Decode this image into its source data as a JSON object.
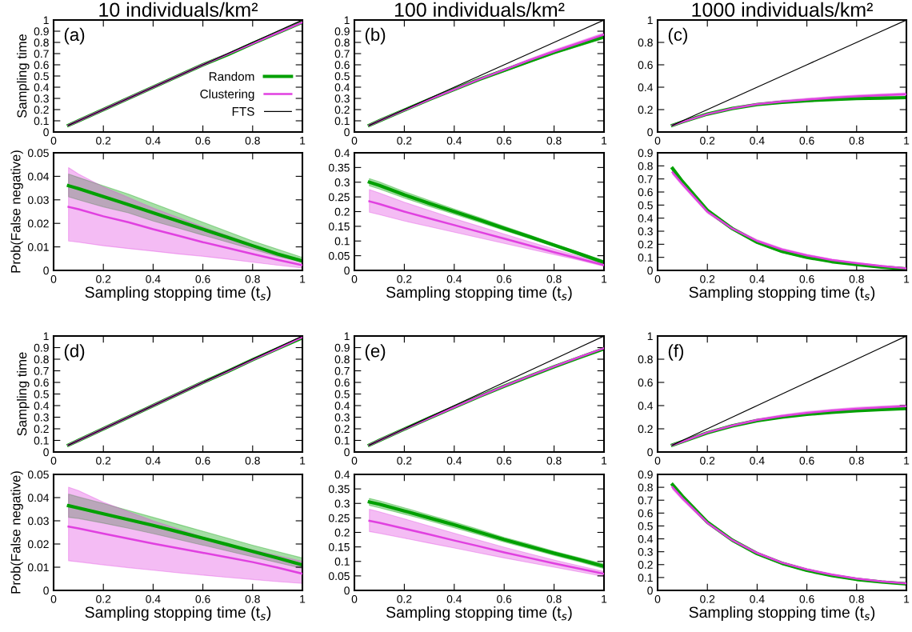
{
  "chart_data": [
    {
      "type": "line",
      "title": "10 individuals/km²",
      "ylabel": "Sampling time",
      "annotations": [
        "(a)"
      ],
      "legend": "center right",
      "x": [
        0.06,
        0.1,
        0.2,
        0.3,
        0.4,
        0.5,
        0.6,
        0.7,
        0.8,
        0.9,
        1.0
      ],
      "xlim": [
        0,
        1
      ],
      "xticks": [
        0,
        0.2,
        0.4,
        0.6,
        0.8,
        1
      ],
      "ylim": [
        0,
        1
      ],
      "yticks": [
        0,
        0.1,
        0.2,
        0.3,
        0.4,
        0.5,
        0.6,
        0.7,
        0.8,
        0.9,
        1
      ],
      "series": [
        {
          "name": "Random",
          "color": "#00a000",
          "values": [
            0.06,
            0.1,
            0.2,
            0.3,
            0.4,
            0.5,
            0.6,
            0.69,
            0.79,
            0.885,
            0.98
          ]
        },
        {
          "name": "Clustering",
          "color": "#e040e0",
          "values": [
            0.06,
            0.1,
            0.2,
            0.3,
            0.4,
            0.5,
            0.6,
            0.695,
            0.79,
            0.885,
            0.98
          ]
        },
        {
          "name": "FTS",
          "color": "#000000",
          "values": [
            0.06,
            0.1,
            0.2,
            0.3,
            0.4,
            0.5,
            0.6,
            0.7,
            0.8,
            0.9,
            1.0
          ]
        }
      ]
    },
    {
      "type": "line",
      "title": "100 individuals/km²",
      "annotations": [
        "(b)"
      ],
      "x": [
        0.06,
        0.1,
        0.2,
        0.3,
        0.4,
        0.5,
        0.6,
        0.7,
        0.8,
        0.9,
        1.0
      ],
      "xlim": [
        0,
        1
      ],
      "xticks": [
        0,
        0.2,
        0.4,
        0.6,
        0.8,
        1
      ],
      "ylim": [
        0,
        1
      ],
      "yticks": [
        0,
        0.1,
        0.2,
        0.3,
        0.4,
        0.5,
        0.6,
        0.7,
        0.8,
        0.9,
        1
      ],
      "series": [
        {
          "color": "#00a000",
          "values": [
            0.06,
            0.1,
            0.195,
            0.29,
            0.38,
            0.47,
            0.55,
            0.63,
            0.71,
            0.78,
            0.85
          ],
          "lower": [
            0.06,
            0.098,
            0.192,
            0.285,
            0.374,
            0.462,
            0.54,
            0.619,
            0.697,
            0.766,
            0.835
          ],
          "upper": [
            0.06,
            0.102,
            0.198,
            0.295,
            0.386,
            0.478,
            0.56,
            0.641,
            0.723,
            0.794,
            0.865
          ]
        },
        {
          "color": "#e040e0",
          "values": [
            0.06,
            0.1,
            0.195,
            0.29,
            0.38,
            0.47,
            0.555,
            0.64,
            0.72,
            0.795,
            0.87
          ],
          "lower": [
            0.06,
            0.098,
            0.192,
            0.285,
            0.374,
            0.462,
            0.545,
            0.629,
            0.707,
            0.781,
            0.855
          ],
          "upper": [
            0.06,
            0.102,
            0.198,
            0.295,
            0.386,
            0.478,
            0.565,
            0.651,
            0.733,
            0.809,
            0.885
          ]
        },
        {
          "color": "#000000",
          "values": [
            0.06,
            0.1,
            0.2,
            0.3,
            0.4,
            0.5,
            0.6,
            0.7,
            0.8,
            0.9,
            1.0
          ]
        }
      ]
    },
    {
      "type": "line",
      "title": "1000 individuals/km²",
      "annotations": [
        "(c)"
      ],
      "x": [
        0.06,
        0.1,
        0.2,
        0.3,
        0.4,
        0.5,
        0.6,
        0.7,
        0.8,
        0.9,
        1.0
      ],
      "xlim": [
        0,
        1
      ],
      "xticks": [
        0,
        0.2,
        0.4,
        0.6,
        0.8,
        1
      ],
      "ylim": [
        0,
        1
      ],
      "yticks": [
        0,
        0.2,
        0.4,
        0.6,
        0.8,
        1
      ],
      "series": [
        {
          "color": "#00a000",
          "values": [
            0.06,
            0.09,
            0.16,
            0.21,
            0.245,
            0.265,
            0.28,
            0.29,
            0.298,
            0.303,
            0.307
          ]
        },
        {
          "color": "#e040e0",
          "values": [
            0.06,
            0.09,
            0.16,
            0.21,
            0.248,
            0.272,
            0.29,
            0.305,
            0.318,
            0.328,
            0.338
          ],
          "lower": [
            0.06,
            0.087,
            0.154,
            0.202,
            0.238,
            0.261,
            0.278,
            0.293,
            0.306,
            0.316,
            0.326
          ],
          "upper": [
            0.06,
            0.093,
            0.166,
            0.218,
            0.258,
            0.283,
            0.302,
            0.317,
            0.33,
            0.34,
            0.35
          ]
        },
        {
          "color": "#000000",
          "values": [
            0.06,
            0.1,
            0.2,
            0.3,
            0.4,
            0.5,
            0.6,
            0.7,
            0.8,
            0.9,
            1.0
          ]
        }
      ]
    },
    {
      "type": "line",
      "xlabel": "Sampling stopping time (t$_{s}$)",
      "ylabel": "Prob(False negative)",
      "x": [
        0.06,
        0.1,
        0.2,
        0.3,
        0.4,
        0.5,
        0.6,
        0.7,
        0.8,
        0.9,
        1.0
      ],
      "xlim": [
        0,
        1
      ],
      "xticks": [
        0,
        0.2,
        0.4,
        0.6,
        0.8,
        1
      ],
      "ylim": [
        0,
        0.05
      ],
      "yticks": [
        0,
        0.01,
        0.02,
        0.03,
        0.04,
        0.05
      ],
      "series": [
        {
          "color": "#00a000",
          "values": [
            0.036,
            0.0348,
            0.0314,
            0.028,
            0.0245,
            0.021,
            0.0175,
            0.014,
            0.0105,
            0.007,
            0.004
          ],
          "lower": [
            0.0313,
            0.03,
            0.027,
            0.0245,
            0.021,
            0.018,
            0.015,
            0.012,
            0.009,
            0.006,
            0.0035
          ],
          "upper": [
            0.041,
            0.0395,
            0.036,
            0.0325,
            0.0285,
            0.0245,
            0.0205,
            0.0165,
            0.0125,
            0.009,
            0.0055
          ]
        },
        {
          "color": "#e040e0",
          "values": [
            0.027,
            0.026,
            0.023,
            0.0205,
            0.0175,
            0.0148,
            0.012,
            0.0095,
            0.007,
            0.0045,
            0.0022
          ],
          "lower": [
            0.0125,
            0.012,
            0.0105,
            0.0093,
            0.0082,
            0.007,
            0.006,
            0.0048,
            0.0035,
            0.0022,
            0.001
          ],
          "upper": [
            0.0437,
            0.041,
            0.0355,
            0.031,
            0.0265,
            0.0225,
            0.0185,
            0.0148,
            0.011,
            0.0068,
            0.0035
          ]
        }
      ]
    },
    {
      "type": "line",
      "xlabel": "Sampling stopping time (t$_{s}$)",
      "x": [
        0.06,
        0.1,
        0.2,
        0.3,
        0.4,
        0.5,
        0.6,
        0.7,
        0.8,
        0.9,
        1.0
      ],
      "xlim": [
        0,
        1
      ],
      "xticks": [
        0,
        0.2,
        0.4,
        0.6,
        0.8,
        1
      ],
      "ylim": [
        0,
        0.4
      ],
      "yticks": [
        0,
        0.05,
        0.1,
        0.15,
        0.2,
        0.25,
        0.3,
        0.35,
        0.4
      ],
      "series": [
        {
          "color": "#00a000",
          "values": [
            0.3,
            0.289,
            0.257,
            0.228,
            0.2,
            0.172,
            0.143,
            0.115,
            0.086,
            0.057,
            0.027
          ],
          "lower": [
            0.288,
            0.277,
            0.246,
            0.218,
            0.191,
            0.164,
            0.136,
            0.109,
            0.081,
            0.052,
            0.021
          ],
          "upper": [
            0.312,
            0.301,
            0.268,
            0.238,
            0.209,
            0.18,
            0.15,
            0.121,
            0.091,
            0.062,
            0.033
          ]
        },
        {
          "color": "#e040e0",
          "values": [
            0.235,
            0.226,
            0.2,
            0.177,
            0.154,
            0.131,
            0.108,
            0.085,
            0.062,
            0.04,
            0.018
          ],
          "lower": [
            0.198,
            0.19,
            0.168,
            0.149,
            0.13,
            0.111,
            0.092,
            0.073,
            0.054,
            0.035,
            0.014
          ],
          "upper": [
            0.275,
            0.263,
            0.232,
            0.204,
            0.176,
            0.15,
            0.124,
            0.098,
            0.073,
            0.048,
            0.024
          ]
        }
      ]
    },
    {
      "type": "line",
      "xlabel": "Sampling stopping time (t$_{s}$)",
      "x": [
        0.06,
        0.1,
        0.2,
        0.3,
        0.4,
        0.5,
        0.6,
        0.7,
        0.8,
        0.9,
        1.0
      ],
      "xlim": [
        0,
        1
      ],
      "xticks": [
        0,
        0.2,
        0.4,
        0.6,
        0.8,
        1
      ],
      "ylim": [
        0,
        0.9
      ],
      "yticks": [
        0,
        0.1,
        0.2,
        0.3,
        0.4,
        0.5,
        0.6,
        0.7,
        0.8,
        0.9
      ],
      "series": [
        {
          "color": "#00a000",
          "values": [
            0.78,
            0.68,
            0.46,
            0.32,
            0.215,
            0.145,
            0.1,
            0.067,
            0.045,
            0.025,
            0.012
          ],
          "lower": [
            0.765,
            0.666,
            0.448,
            0.31,
            0.206,
            0.137,
            0.093,
            0.061,
            0.04,
            0.021,
            0.009
          ],
          "upper": [
            0.795,
            0.694,
            0.472,
            0.33,
            0.224,
            0.153,
            0.107,
            0.073,
            0.05,
            0.029,
            0.015
          ]
        },
        {
          "color": "#e040e0",
          "values": [
            0.75,
            0.66,
            0.45,
            0.32,
            0.225,
            0.16,
            0.115,
            0.08,
            0.055,
            0.033,
            0.015
          ],
          "lower": [
            0.735,
            0.646,
            0.438,
            0.31,
            0.215,
            0.151,
            0.107,
            0.073,
            0.049,
            0.028,
            0.011
          ],
          "upper": [
            0.765,
            0.674,
            0.462,
            0.33,
            0.235,
            0.169,
            0.123,
            0.087,
            0.061,
            0.038,
            0.019
          ]
        }
      ]
    },
    {
      "type": "line",
      "ylabel": "Sampling time",
      "annotations": [
        "(d)"
      ],
      "x": [
        0.06,
        0.1,
        0.2,
        0.3,
        0.4,
        0.5,
        0.6,
        0.7,
        0.8,
        0.9,
        1.0
      ],
      "xlim": [
        0,
        1
      ],
      "xticks": [
        0,
        0.2,
        0.4,
        0.6,
        0.8,
        1
      ],
      "ylim": [
        0,
        1
      ],
      "yticks": [
        0,
        0.1,
        0.2,
        0.3,
        0.4,
        0.5,
        0.6,
        0.7,
        0.8,
        0.9,
        1
      ],
      "series": [
        {
          "color": "#00a000",
          "values": [
            0.06,
            0.1,
            0.2,
            0.3,
            0.4,
            0.5,
            0.6,
            0.695,
            0.795,
            0.89,
            0.985
          ]
        },
        {
          "color": "#e040e0",
          "values": [
            0.06,
            0.1,
            0.2,
            0.3,
            0.4,
            0.5,
            0.6,
            0.695,
            0.795,
            0.89,
            0.99
          ]
        },
        {
          "color": "#000000",
          "values": [
            0.06,
            0.1,
            0.2,
            0.3,
            0.4,
            0.5,
            0.6,
            0.7,
            0.8,
            0.9,
            1.0
          ]
        }
      ]
    },
    {
      "type": "line",
      "annotations": [
        "(e)"
      ],
      "x": [
        0.06,
        0.1,
        0.2,
        0.3,
        0.4,
        0.5,
        0.6,
        0.7,
        0.8,
        0.9,
        1.0
      ],
      "xlim": [
        0,
        1
      ],
      "xticks": [
        0,
        0.2,
        0.4,
        0.6,
        0.8,
        1
      ],
      "ylim": [
        0,
        1
      ],
      "yticks": [
        0,
        0.1,
        0.2,
        0.3,
        0.4,
        0.5,
        0.6,
        0.7,
        0.8,
        0.9,
        1
      ],
      "series": [
        {
          "color": "#00a000",
          "values": [
            0.06,
            0.1,
            0.197,
            0.293,
            0.386,
            0.478,
            0.567,
            0.652,
            0.734,
            0.813,
            0.89
          ]
        },
        {
          "color": "#e040e0",
          "values": [
            0.06,
            0.1,
            0.197,
            0.293,
            0.386,
            0.479,
            0.568,
            0.654,
            0.737,
            0.817,
            0.895
          ]
        },
        {
          "color": "#000000",
          "values": [
            0.06,
            0.1,
            0.2,
            0.3,
            0.4,
            0.5,
            0.6,
            0.7,
            0.8,
            0.9,
            1.0
          ]
        }
      ]
    },
    {
      "type": "line",
      "annotations": [
        "(f)"
      ],
      "x": [
        0.06,
        0.1,
        0.2,
        0.3,
        0.4,
        0.5,
        0.6,
        0.7,
        0.8,
        0.9,
        1.0
      ],
      "xlim": [
        0,
        1
      ],
      "xticks": [
        0,
        0.2,
        0.4,
        0.6,
        0.8,
        1
      ],
      "ylim": [
        0,
        1
      ],
      "yticks": [
        0,
        0.2,
        0.4,
        0.6,
        0.8,
        1
      ],
      "series": [
        {
          "color": "#00a000",
          "values": [
            0.06,
            0.09,
            0.165,
            0.225,
            0.27,
            0.3,
            0.325,
            0.342,
            0.355,
            0.366,
            0.375
          ]
        },
        {
          "color": "#e040e0",
          "values": [
            0.06,
            0.09,
            0.168,
            0.228,
            0.276,
            0.31,
            0.337,
            0.357,
            0.373,
            0.385,
            0.395
          ],
          "lower": [
            0.06,
            0.087,
            0.162,
            0.22,
            0.266,
            0.299,
            0.325,
            0.345,
            0.361,
            0.373,
            0.383
          ],
          "upper": [
            0.06,
            0.093,
            0.174,
            0.236,
            0.286,
            0.321,
            0.349,
            0.369,
            0.385,
            0.397,
            0.407
          ]
        },
        {
          "color": "#000000",
          "values": [
            0.06,
            0.1,
            0.2,
            0.3,
            0.4,
            0.5,
            0.6,
            0.7,
            0.8,
            0.9,
            1.0
          ]
        }
      ]
    },
    {
      "type": "line",
      "xlabel": "Sampling stopping time (t$_{s}$)",
      "ylabel": "Prob(False negative)",
      "x": [
        0.06,
        0.1,
        0.2,
        0.3,
        0.4,
        0.5,
        0.6,
        0.7,
        0.8,
        0.9,
        1.0
      ],
      "xlim": [
        0,
        1
      ],
      "xticks": [
        0,
        0.2,
        0.4,
        0.6,
        0.8,
        1
      ],
      "ylim": [
        0,
        0.05
      ],
      "yticks": [
        0,
        0.01,
        0.02,
        0.03,
        0.04,
        0.05
      ],
      "series": [
        {
          "color": "#00a000",
          "values": [
            0.0365,
            0.0355,
            0.033,
            0.0305,
            0.028,
            0.0253,
            0.0225,
            0.0197,
            0.0168,
            0.014,
            0.011
          ],
          "lower": [
            0.0315,
            0.031,
            0.029,
            0.0268,
            0.0245,
            0.022,
            0.0195,
            0.017,
            0.0145,
            0.012,
            0.0095
          ],
          "upper": [
            0.0415,
            0.0403,
            0.0375,
            0.0345,
            0.0315,
            0.0285,
            0.0255,
            0.0225,
            0.0195,
            0.0167,
            0.014
          ]
        },
        {
          "color": "#e040e0",
          "values": [
            0.0275,
            0.0267,
            0.0245,
            0.0223,
            0.0202,
            0.0182,
            0.0162,
            0.0142,
            0.0122,
            0.0098,
            0.0072
          ],
          "lower": [
            0.0128,
            0.0123,
            0.011,
            0.0098,
            0.0087,
            0.0076,
            0.0066,
            0.0056,
            0.0047,
            0.0038,
            0.003
          ],
          "upper": [
            0.0445,
            0.043,
            0.038,
            0.034,
            0.03,
            0.0265,
            0.023,
            0.02,
            0.0175,
            0.015,
            0.0125
          ]
        }
      ]
    },
    {
      "type": "line",
      "xlabel": "Sampling stopping time (t$_{s}$)",
      "x": [
        0.06,
        0.1,
        0.2,
        0.3,
        0.4,
        0.5,
        0.6,
        0.7,
        0.8,
        0.9,
        1.0
      ],
      "xlim": [
        0,
        1
      ],
      "xticks": [
        0,
        0.2,
        0.4,
        0.6,
        0.8,
        1
      ],
      "ylim": [
        0,
        0.4
      ],
      "yticks": [
        0,
        0.05,
        0.1,
        0.15,
        0.2,
        0.25,
        0.3,
        0.35,
        0.4
      ],
      "series": [
        {
          "color": "#00a000",
          "values": [
            0.305,
            0.297,
            0.274,
            0.25,
            0.226,
            0.201,
            0.175,
            0.152,
            0.128,
            0.106,
            0.083
          ],
          "lower": [
            0.293,
            0.285,
            0.263,
            0.24,
            0.216,
            0.192,
            0.167,
            0.144,
            0.121,
            0.099,
            0.075
          ],
          "upper": [
            0.317,
            0.309,
            0.285,
            0.26,
            0.236,
            0.21,
            0.183,
            0.16,
            0.135,
            0.113,
            0.091
          ]
        },
        {
          "color": "#e040e0",
          "values": [
            0.24,
            0.233,
            0.213,
            0.193,
            0.172,
            0.152,
            0.131,
            0.112,
            0.093,
            0.075,
            0.057
          ],
          "lower": [
            0.203,
            0.197,
            0.18,
            0.163,
            0.146,
            0.129,
            0.112,
            0.096,
            0.08,
            0.064,
            0.048
          ],
          "upper": [
            0.28,
            0.271,
            0.247,
            0.222,
            0.197,
            0.173,
            0.149,
            0.127,
            0.105,
            0.085,
            0.065
          ]
        }
      ]
    },
    {
      "type": "line",
      "xlabel": "Sampling stopping time (t$_{s}$)",
      "x": [
        0.06,
        0.1,
        0.2,
        0.3,
        0.4,
        0.5,
        0.6,
        0.7,
        0.8,
        0.9,
        1.0
      ],
      "xlim": [
        0,
        1
      ],
      "xticks": [
        0,
        0.2,
        0.4,
        0.6,
        0.8,
        1
      ],
      "ylim": [
        0,
        0.9
      ],
      "yticks": [
        0,
        0.1,
        0.2,
        0.3,
        0.4,
        0.5,
        0.6,
        0.7,
        0.8,
        0.9
      ],
      "series": [
        {
          "color": "#00a000",
          "values": [
            0.82,
            0.73,
            0.53,
            0.39,
            0.285,
            0.21,
            0.155,
            0.115,
            0.085,
            0.065,
            0.05
          ],
          "lower": [
            0.805,
            0.716,
            0.518,
            0.38,
            0.276,
            0.202,
            0.148,
            0.109,
            0.08,
            0.061,
            0.046
          ],
          "upper": [
            0.835,
            0.744,
            0.542,
            0.4,
            0.294,
            0.218,
            0.162,
            0.121,
            0.09,
            0.069,
            0.054
          ]
        },
        {
          "color": "#e040e0",
          "values": [
            0.8,
            0.715,
            0.525,
            0.39,
            0.29,
            0.215,
            0.162,
            0.122,
            0.092,
            0.07,
            0.055
          ],
          "lower": [
            0.785,
            0.701,
            0.513,
            0.38,
            0.28,
            0.206,
            0.154,
            0.115,
            0.086,
            0.064,
            0.049
          ],
          "upper": [
            0.815,
            0.729,
            0.537,
            0.4,
            0.3,
            0.224,
            0.17,
            0.129,
            0.098,
            0.076,
            0.061
          ]
        }
      ]
    }
  ]
}
